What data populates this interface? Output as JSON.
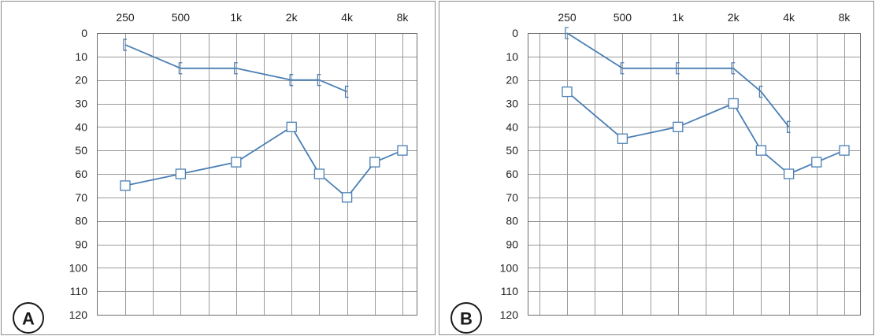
{
  "colors": {
    "series": "#4a7fb5"
  },
  "chart_data": [
    {
      "type": "line",
      "panel_label": "A",
      "x_ticks": [
        "250",
        "500",
        "1k",
        "2k",
        "4k",
        "8k"
      ],
      "y_ticks": [
        "0",
        "10",
        "20",
        "30",
        "40",
        "50",
        "60",
        "70",
        "80",
        "90",
        "100",
        "110",
        "120"
      ],
      "ylim": [
        0,
        120
      ],
      "y_inverted": true,
      "grid": true,
      "series": [
        {
          "marker": "bracket",
          "x": [
            "250",
            "500",
            "1k",
            "2k",
            "3k",
            "4k"
          ],
          "values": [
            5,
            15,
            15,
            20,
            20,
            25
          ]
        },
        {
          "marker": "square",
          "x": [
            "250",
            "500",
            "1k",
            "2k",
            "3k",
            "4k",
            "6k",
            "8k"
          ],
          "values": [
            65,
            60,
            55,
            40,
            60,
            70,
            55,
            50
          ]
        }
      ]
    },
    {
      "type": "line",
      "panel_label": "B",
      "x_ticks": [
        "250",
        "500",
        "1k",
        "2k",
        "4k",
        "8k"
      ],
      "y_ticks": [
        "0",
        "10",
        "20",
        "30",
        "40",
        "50",
        "60",
        "70",
        "80",
        "90",
        "100",
        "110",
        "120"
      ],
      "ylim": [
        0,
        120
      ],
      "y_inverted": true,
      "grid": true,
      "series": [
        {
          "marker": "bracket",
          "x": [
            "250",
            "500",
            "1k",
            "2k",
            "3k",
            "4k"
          ],
          "values": [
            0,
            15,
            15,
            15,
            25,
            40
          ]
        },
        {
          "marker": "square",
          "x": [
            "250",
            "500",
            "1k",
            "2k",
            "3k",
            "4k",
            "6k",
            "8k"
          ],
          "values": [
            25,
            45,
            40,
            30,
            50,
            60,
            55,
            50
          ]
        }
      ]
    }
  ]
}
